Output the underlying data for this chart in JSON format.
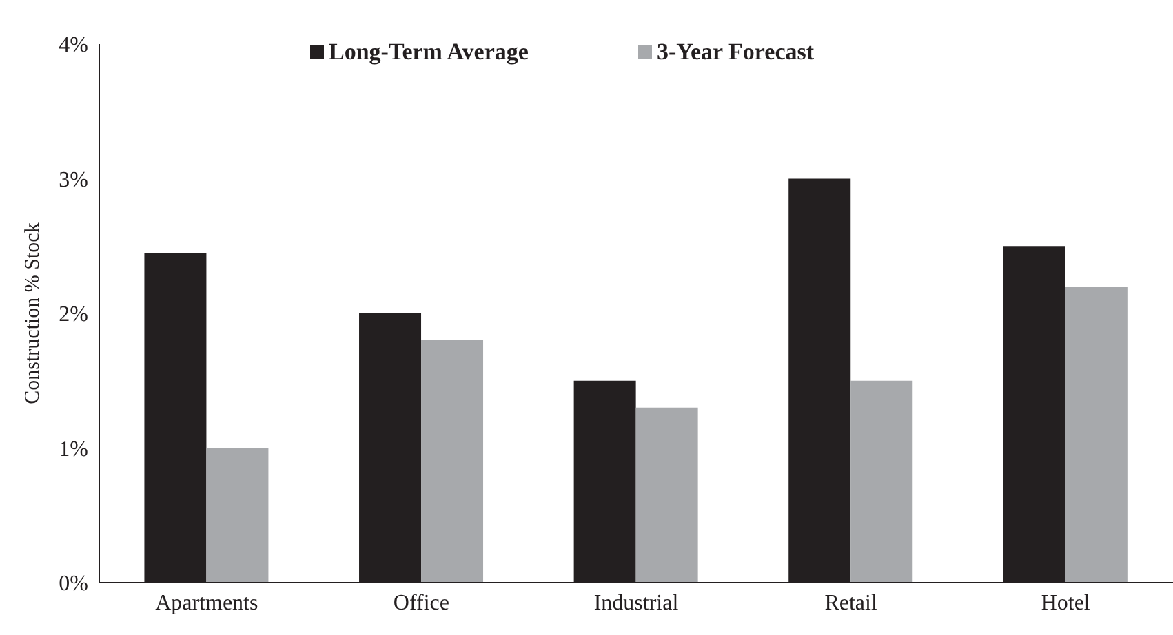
{
  "chart_data": {
    "type": "bar",
    "ylabel": "Construction % Stock",
    "categories": [
      "Apartments",
      "Office",
      "Industrial",
      "Retail",
      "Hotel"
    ],
    "series": [
      {
        "name": "Long-Term Average",
        "color": "#231f20",
        "values": [
          2.45,
          2.0,
          1.5,
          3.0,
          2.5
        ]
      },
      {
        "name": "3-Year Forecast",
        "color": "#a7a9ac",
        "values": [
          1.0,
          1.8,
          1.3,
          1.5,
          2.2
        ]
      }
    ],
    "ylim": [
      0,
      4
    ],
    "yticks": [
      {
        "value": 0,
        "label": "0%"
      },
      {
        "value": 1,
        "label": "1%"
      },
      {
        "value": 2,
        "label": "2%"
      },
      {
        "value": 3,
        "label": "3%"
      },
      {
        "value": 4,
        "label": "4%"
      }
    ],
    "grid": false,
    "legend": "top"
  }
}
